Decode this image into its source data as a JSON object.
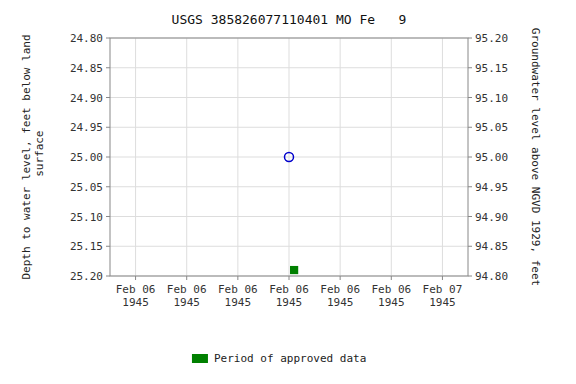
{
  "chart_data": {
    "type": "scatter",
    "title": "USGS 385826077110401 MO Fe   9",
    "y_label": "Depth to water level, feet below land\n surface",
    "y2_label": "Groundwater level above NGVD 1929, feet",
    "categories": [
      "Feb 06\n1945",
      "Feb 06\n1945",
      "Feb 06\n1945",
      "Feb 06\n1945",
      "Feb 06\n1945",
      "Feb 06\n1945",
      "Feb 07\n1945"
    ],
    "series": [
      {
        "color": "#0000cc",
        "marker": "circle-open",
        "values": [
          null,
          null,
          null,
          25.0,
          null,
          null,
          null
        ]
      },
      {
        "name": "Period of approved data",
        "color": "#008000",
        "marker": "square",
        "values": [
          null,
          null,
          null,
          25.19,
          null,
          null,
          null
        ]
      }
    ],
    "ylim": [
      25.2,
      24.8
    ],
    "yticks": [
      {
        "value": 24.8,
        "label": "24.80"
      },
      {
        "value": 24.85,
        "label": "24.85"
      },
      {
        "value": 24.9,
        "label": "24.90"
      },
      {
        "value": 24.95,
        "label": "24.95"
      },
      {
        "value": 25.0,
        "label": "25.00"
      },
      {
        "value": 25.05,
        "label": "25.05"
      },
      {
        "value": 25.1,
        "label": "25.10"
      },
      {
        "value": 25.15,
        "label": "25.15"
      },
      {
        "value": 25.2,
        "label": "25.20"
      }
    ],
    "y2lim": [
      94.8,
      95.2
    ],
    "y2ticks": [
      {
        "value": 95.2,
        "label": "95.20"
      },
      {
        "value": 95.15,
        "label": "95.15"
      },
      {
        "value": 95.1,
        "label": "95.10"
      },
      {
        "value": 95.05,
        "label": "95.05"
      },
      {
        "value": 95.0,
        "label": "95.00"
      },
      {
        "value": 94.95,
        "label": "94.95"
      },
      {
        "value": 94.9,
        "label": "94.90"
      },
      {
        "value": 94.85,
        "label": "94.85"
      },
      {
        "value": 94.8,
        "label": "94.80"
      }
    ],
    "grid": true,
    "legend": "bottom"
  }
}
